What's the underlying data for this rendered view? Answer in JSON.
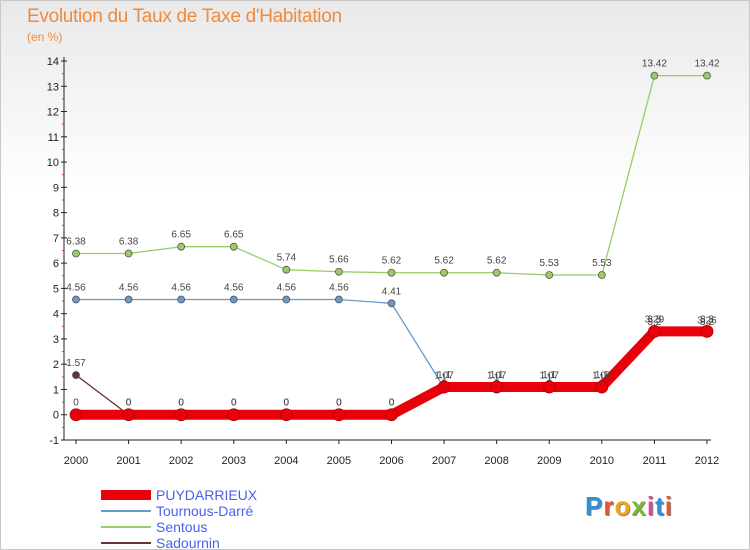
{
  "header": {
    "title": "Evolution du Taux de Taxe d'Habitation",
    "subtitle": "(en %)"
  },
  "logo": {
    "text": "Proxiti",
    "letter_colors": [
      "#2f8fd8",
      "#e8562a",
      "#f2a31b",
      "#7ab82e",
      "#d94a8c",
      "#2f8fd8",
      "#e8562a"
    ]
  },
  "chart_data": {
    "type": "line",
    "x": [
      "2000",
      "2001",
      "2002",
      "2003",
      "2004",
      "2005",
      "2006",
      "2007",
      "2008",
      "2009",
      "2010",
      "2011",
      "2012"
    ],
    "ylim": [
      -1,
      14
    ],
    "yticks": [
      -1,
      0,
      1,
      2,
      3,
      4,
      5,
      6,
      7,
      8,
      9,
      10,
      11,
      12,
      13,
      14
    ],
    "grid": false,
    "legend_position": "bottom-left",
    "series": [
      {
        "name": "PUYDARRIEUX",
        "color": "#e8000b",
        "values": [
          0,
          0,
          0,
          0,
          0,
          0,
          0,
          1.1,
          1.1,
          1.1,
          1.1,
          3.3,
          3.3
        ],
        "labels": [
          "0",
          "0",
          "0",
          "0",
          "0",
          "0",
          "0",
          "1.1",
          "1.1",
          "1.1",
          "1.1",
          "3.3",
          "3.3"
        ]
      },
      {
        "name": "Tournous-Darré",
        "color": "#6699cc",
        "values": [
          4.56,
          4.56,
          4.56,
          4.56,
          4.56,
          4.56,
          4.41,
          1.07,
          1.07,
          1.07,
          1.07,
          3.29,
          3.26
        ],
        "labels": [
          "4.56",
          "4.56",
          "4.56",
          "4.56",
          "4.56",
          "4.56",
          "4.41",
          "1.07",
          "1.07",
          "1.07",
          "1.07",
          "3.29",
          "3.26"
        ]
      },
      {
        "name": "Sentous",
        "color": "#99cc66",
        "values": [
          6.38,
          6.38,
          6.65,
          6.65,
          5.74,
          5.66,
          5.62,
          5.62,
          5.62,
          5.53,
          5.53,
          13.42,
          13.42
        ],
        "labels": [
          "6.38",
          "6.38",
          "6.65",
          "6.65",
          "5.74",
          "5.66",
          "5.62",
          "5.62",
          "5.62",
          "5.53",
          "5.53",
          "13.42",
          "13.42"
        ]
      },
      {
        "name": "Sadournin",
        "color": "#663333",
        "values": [
          1.57,
          0,
          0,
          0,
          0,
          0,
          0,
          1,
          1,
          1,
          1,
          3.2,
          3.2
        ],
        "labels": [
          "1.57",
          "0",
          "0",
          "0",
          "0",
          "0",
          "0",
          "1",
          "1",
          "1",
          "1",
          "3.2",
          "3.2"
        ]
      }
    ]
  }
}
